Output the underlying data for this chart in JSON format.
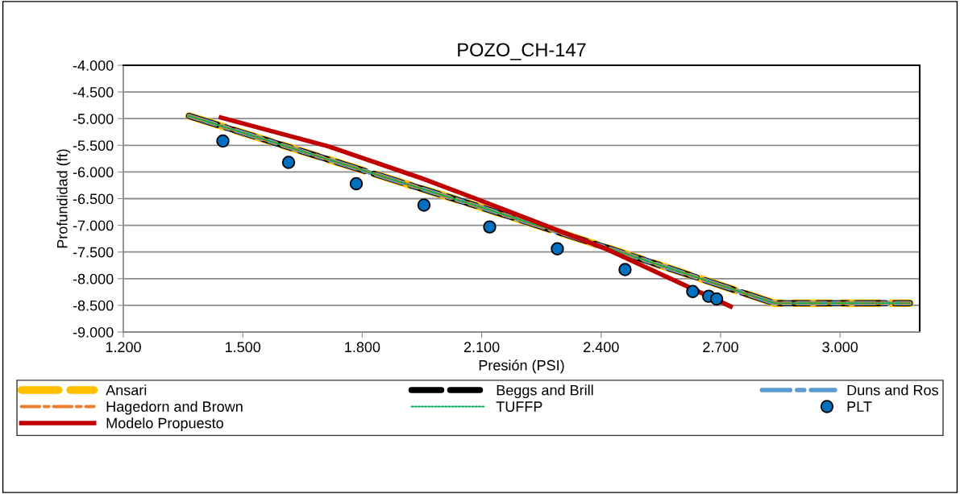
{
  "chart_data": {
    "type": "line",
    "title": "POZO_CH-147",
    "xlabel": "Presión (PSI)",
    "ylabel": "Profundidad (ft)",
    "xlim": [
      1200,
      3200
    ],
    "ylim": [
      -9000,
      -4000
    ],
    "xticks": [
      {
        "value": 1200,
        "label": "1.200"
      },
      {
        "value": 1500,
        "label": "1.500"
      },
      {
        "value": 1800,
        "label": "1.800"
      },
      {
        "value": 2100,
        "label": "2.100"
      },
      {
        "value": 2400,
        "label": "2.400"
      },
      {
        "value": 2700,
        "label": "2.700"
      },
      {
        "value": 3000,
        "label": "3.000"
      }
    ],
    "yticks": [
      {
        "value": -4000,
        "label": "-4.000"
      },
      {
        "value": -4500,
        "label": "-4.500"
      },
      {
        "value": -5000,
        "label": "-5.000"
      },
      {
        "value": -5500,
        "label": "-5.500"
      },
      {
        "value": -6000,
        "label": "-6.000"
      },
      {
        "value": -6500,
        "label": "-6.500"
      },
      {
        "value": -7000,
        "label": "-7.000"
      },
      {
        "value": -7500,
        "label": "-7.500"
      },
      {
        "value": -8000,
        "label": "-8.000"
      },
      {
        "value": -8500,
        "label": "-8.500"
      },
      {
        "value": -9000,
        "label": "-9.000"
      }
    ],
    "grid": "y",
    "legend": "bottom",
    "series": [
      {
        "name": "Ansari",
        "color": "#ffc000",
        "line_style": "dashed",
        "x": [
          1365,
          2085,
          2460,
          2835,
          3175
        ],
        "values": [
          -4950,
          -6630,
          -7530,
          -8460,
          -8460
        ]
      },
      {
        "name": "Beggs and Brill",
        "color": "#000000",
        "line_style": "dashed",
        "x": [
          1365,
          2085,
          2460,
          2835,
          3175
        ],
        "values": [
          -4950,
          -6630,
          -7530,
          -8460,
          -8460
        ]
      },
      {
        "name": "Duns and Ros",
        "color": "#5b9bd5",
        "line_style": "dashdot",
        "x": [
          1365,
          2085,
          2460,
          2835,
          3175
        ],
        "values": [
          -4950,
          -6630,
          -7530,
          -8460,
          -8460
        ]
      },
      {
        "name": "Hagedorn and Brown",
        "color": "#ed7d31",
        "line_style": "dashdot",
        "x": [
          1365,
          2085,
          2460,
          2835,
          3175
        ],
        "values": [
          -4950,
          -6630,
          -7530,
          -8460,
          -8460
        ]
      },
      {
        "name": "TUFFP",
        "color": "#00b050",
        "line_style": "dotted",
        "x": [
          1365,
          2085,
          2460,
          2835,
          3175
        ],
        "values": [
          -4950,
          -6630,
          -7530,
          -8460,
          -8460
        ]
      },
      {
        "name": "PLT",
        "type": "scatter",
        "color": "#0070c0",
        "marker": "circle",
        "x": [
          1450,
          1615,
          1785,
          1955,
          2120,
          2290,
          2460,
          2630,
          2670,
          2690
        ],
        "values": [
          -5420,
          -5820,
          -6220,
          -6620,
          -7030,
          -7440,
          -7830,
          -8240,
          -8330,
          -8380
        ]
      },
      {
        "name": "Modelo Propuesto",
        "color": "#c00000",
        "line_style": "solid",
        "x": [
          1445,
          1715,
          1950,
          2085,
          2415,
          2725
        ],
        "values": [
          -4980,
          -5520,
          -6120,
          -6500,
          -7450,
          -8520
        ]
      }
    ]
  }
}
